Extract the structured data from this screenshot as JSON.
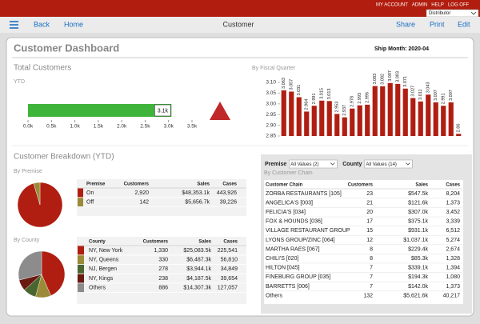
{
  "top_bar": {
    "links": [
      "MY ACCOUNT",
      "ADMIN",
      "HELP",
      "LOG OFF"
    ],
    "role_select": "Distributor"
  },
  "nav": {
    "back": "Back",
    "home": "Home",
    "title": "Customer",
    "actions": [
      "Share",
      "Print",
      "Edit"
    ]
  },
  "dashboard": {
    "title": "Customer Dashboard",
    "ship_month": "Ship Month: 2020-04"
  },
  "total_customers": {
    "title": "Total Customers",
    "subtitle": "YTD",
    "value": 3062,
    "value_label": "3.1k",
    "color": "#3fb43a",
    "xlim": [
      0,
      3500
    ],
    "xticks": [
      {
        "value": 0,
        "label": "0.0k"
      },
      {
        "value": 500,
        "label": "0.5k"
      },
      {
        "value": 1000,
        "label": "1.0k"
      },
      {
        "value": 1500,
        "label": "1.5k"
      },
      {
        "value": 2000,
        "label": "2.0k"
      },
      {
        "value": 2500,
        "label": "2.5k"
      },
      {
        "value": 3000,
        "label": "3.0k"
      },
      {
        "value": 3500,
        "label": "3.5k"
      }
    ]
  },
  "fiscal_quarter": {
    "type": "bar",
    "title": "By Fiscal Quarter",
    "color": "#b01e12",
    "values": [
      3.063,
      3.057,
      3.031,
      2.964,
      2.991,
      3.015,
      3.013,
      2.953,
      2.937,
      2.978,
      2.993,
      2.996,
      3.083,
      3.082,
      3.097,
      3.093,
      3.071,
      3.027,
      3.011,
      3.043,
      3.007,
      2.991,
      3.007,
      2.86
    ],
    "ylim": [
      2.85,
      3.1
    ],
    "yticks": [
      2.85,
      {
        "value": 2.9,
        "label": "2.90"
      },
      2.95,
      {
        "value": 3,
        "label": "3.00"
      },
      3.05,
      {
        "value": 3.1,
        "label": "3.10"
      }
    ]
  },
  "breakdown": {
    "title": "Customer Breakdown (YTD)",
    "by_premise": {
      "title": "By Premise",
      "columns": [
        "Premise",
        "Customers",
        "Sales",
        "Cases"
      ],
      "rows": [
        {
          "name": "On",
          "color": "#b01e12",
          "customers": {
            "value": 2920,
            "label": "2,920"
          },
          "sales": "$48,353.1k",
          "cases": "443,926"
        },
        {
          "name": "Off",
          "color": "#9b8a38",
          "customers": 142,
          "sales": "$5,656.7k",
          "cases": "39,226"
        }
      ]
    },
    "by_county": {
      "title": "By County",
      "columns": [
        "County",
        "Customers",
        "Sales",
        "Cases"
      ],
      "rows": [
        {
          "name": "NY, New York",
          "color": "#b01e12",
          "customers": {
            "value": 1330,
            "label": "1,330"
          },
          "sales": "$25,083.5k",
          "cases": "225,541"
        },
        {
          "name": "NY, Queens",
          "color": "#9b8a38",
          "customers": 330,
          "sales": "$6,487.3k",
          "cases": "56,810"
        },
        {
          "name": "NJ, Bergen",
          "color": "#4a6630",
          "customers": 278,
          "sales": "$3,944.1k",
          "cases": "34,849"
        },
        {
          "name": "NY, Kings",
          "color": "#6b1a12",
          "customers": 238,
          "sales": "$4,187.5k",
          "cases": "39,654"
        },
        {
          "name": "Others",
          "color": "#8c8c8c",
          "customers": 886,
          "sales": "$14,307.3k",
          "cases": "127,057"
        }
      ]
    }
  },
  "chain_panel": {
    "filters": [
      {
        "label": "Premise",
        "value": "All Values (2)"
      },
      {
        "label": "County",
        "value": "All Values (14)"
      }
    ],
    "title": "By Customer Chain",
    "columns": [
      "Customer Chain",
      "Customers",
      "Sales",
      "Cases"
    ],
    "rows": [
      [
        "ZORBA RESTAURANTS [105]",
        "23",
        "$547.5k",
        "8,204"
      ],
      [
        "ANGELICA'S [003]",
        "21",
        "$121.6k",
        "1,373"
      ],
      [
        "FELICIA'S [034]",
        "20",
        "$307.0k",
        "3,452"
      ],
      [
        "FOX & HOUNDS [036]",
        "17",
        "$375.1k",
        "3,339"
      ],
      [
        "VILLAGE RESTAURANT GROUP",
        "15",
        "$931.1k",
        "6,512"
      ],
      [
        "LYONS GROUP/ZINC [064]",
        "12",
        "$1,037.1k",
        "5,274"
      ],
      [
        "MARTHA RAES [067]",
        "8",
        "$229.4k",
        "2,674"
      ],
      [
        "CHILI'S [020]",
        "8",
        "$85.3k",
        "1,328"
      ],
      [
        "HILTON [045]",
        "7",
        "$339.1k",
        "1,394"
      ],
      [
        "FINEBURG GROUP [035]",
        "7",
        "$194.3k",
        "1,080"
      ],
      [
        "BARRETTS [006]",
        "7",
        "$142.0k",
        "1,373"
      ],
      [
        "Others",
        "132",
        "$5,621.6k",
        "40,217"
      ]
    ]
  }
}
